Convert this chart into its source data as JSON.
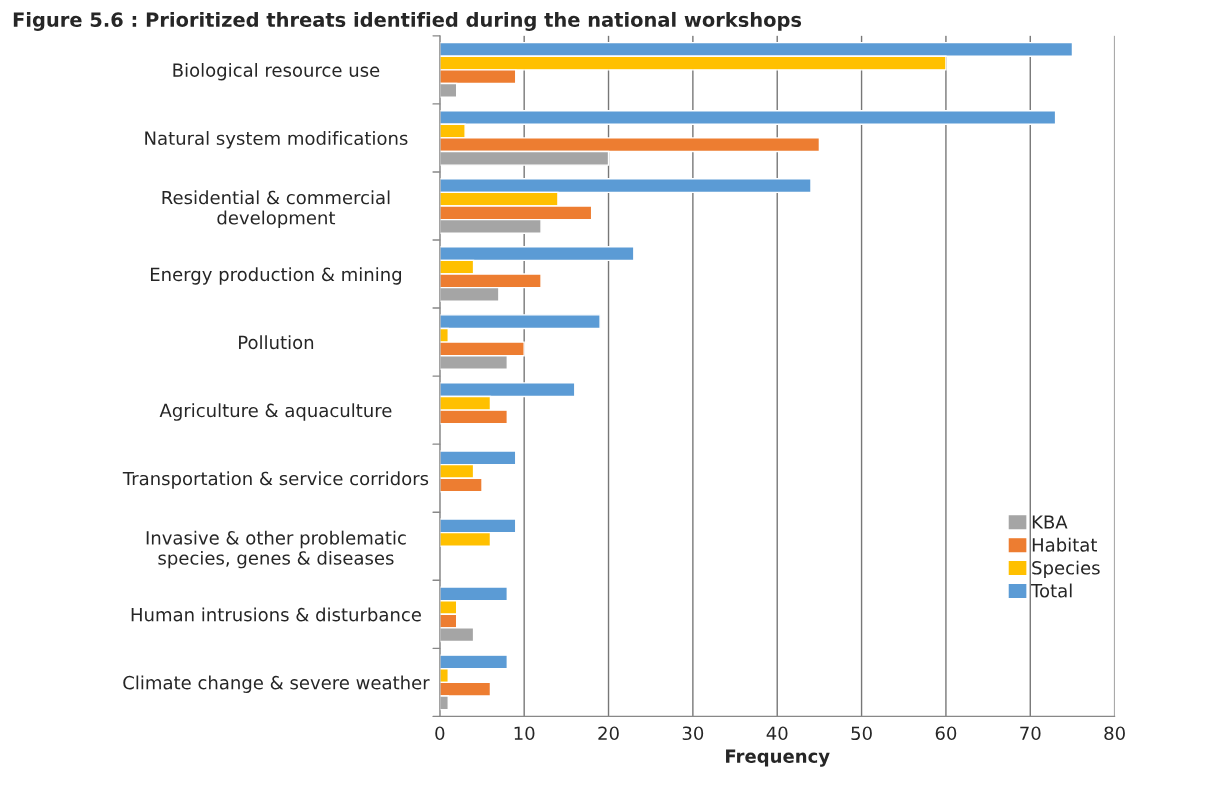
{
  "chart_data": {
    "type": "bar",
    "orientation": "horizontal",
    "title": "Figure 5.6 : Prioritized threats identified during the national workshops",
    "xlabel": "Frequency",
    "categories": [
      "Biological resource use",
      "Natural system modifications",
      "Residential & commercial\ndevelopment",
      "Energy production & mining",
      "Pollution",
      "Agriculture & aquaculture",
      "Transportation & service corridors",
      "Invasive & other problematic\nspecies, genes & diseases",
      "Human intrusions & disturbance",
      "Climate change & severe weather"
    ],
    "series": [
      {
        "name": "KBA",
        "color": "#a5a5a5",
        "values": [
          2,
          20,
          12,
          7,
          8,
          null,
          null,
          null,
          4,
          1
        ]
      },
      {
        "name": "Habitat",
        "color": "#ed7d31",
        "values": [
          9,
          45,
          18,
          12,
          10,
          8,
          5,
          null,
          2,
          6
        ]
      },
      {
        "name": "Species",
        "color": "#ffc000",
        "values": [
          60,
          3,
          14,
          4,
          1,
          6,
          4,
          6,
          2,
          1
        ]
      },
      {
        "name": "Total",
        "color": "#5b9bd5",
        "values": [
          75,
          73,
          44,
          23,
          19,
          16,
          9,
          9,
          8,
          8
        ]
      }
    ],
    "xlim": [
      0,
      80
    ],
    "xticks": [
      0,
      10,
      20,
      30,
      40,
      50,
      60,
      70,
      80
    ],
    "grid": "x",
    "legend": "right"
  }
}
